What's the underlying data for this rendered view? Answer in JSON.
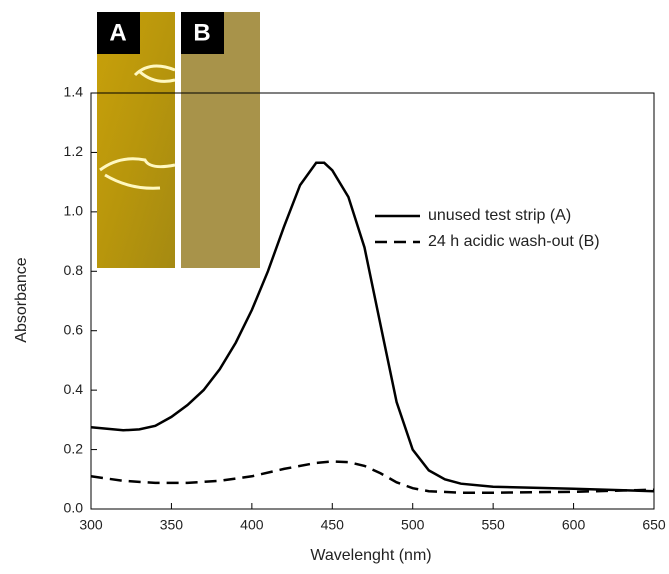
{
  "chart_data": {
    "type": "line",
    "xlabel": "Wavelenght (nm)",
    "ylabel": "Absorbance",
    "xlim": [
      300,
      650
    ],
    "xticks": [
      300,
      350,
      400,
      450,
      500,
      550,
      600,
      650
    ],
    "ylim": [
      0,
      1.4
    ],
    "yticks": [
      {
        "value": 0,
        "label": "0.0"
      },
      0.2,
      0.4,
      0.6,
      0.8,
      {
        "value": 1,
        "label": "1.0"
      },
      1.2,
      1.4
    ],
    "series": [
      {
        "name": "unused test strip (A)",
        "color": "#000000",
        "dash": "solid",
        "x": [
          300,
          310,
          320,
          330,
          340,
          350,
          360,
          370,
          380,
          390,
          400,
          410,
          420,
          430,
          440,
          445,
          450,
          460,
          470,
          480,
          490,
          500,
          510,
          520,
          530,
          550,
          600,
          650
        ],
        "values": [
          0.275,
          0.27,
          0.265,
          0.268,
          0.28,
          0.31,
          0.35,
          0.4,
          0.47,
          0.56,
          0.67,
          0.8,
          0.95,
          1.09,
          1.165,
          1.165,
          1.14,
          1.05,
          0.88,
          0.62,
          0.36,
          0.2,
          0.13,
          0.1,
          0.085,
          0.075,
          0.068,
          0.06
        ]
      },
      {
        "name": "24 h acidic wash-out (B)",
        "color": "#000000",
        "dash": "dashed",
        "x": [
          300,
          320,
          340,
          360,
          380,
          400,
          420,
          440,
          450,
          460,
          470,
          480,
          490,
          500,
          510,
          530,
          550,
          600,
          650
        ],
        "values": [
          0.11,
          0.095,
          0.088,
          0.088,
          0.095,
          0.11,
          0.135,
          0.155,
          0.16,
          0.158,
          0.145,
          0.12,
          0.09,
          0.07,
          0.06,
          0.055,
          0.055,
          0.058,
          0.065
        ]
      }
    ],
    "insets": [
      "A",
      "B"
    ]
  }
}
